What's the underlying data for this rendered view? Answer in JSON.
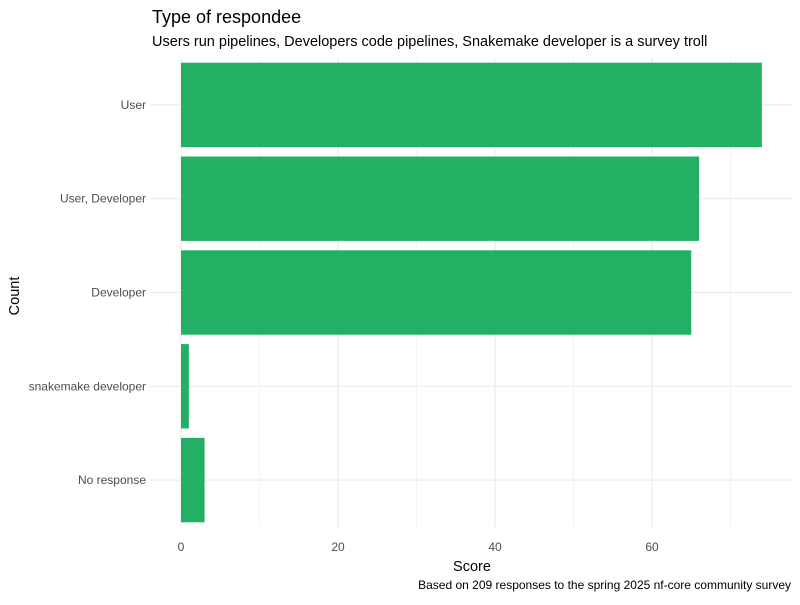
{
  "chart_data": {
    "type": "bar",
    "orientation": "horizontal",
    "title": "Type of respondee",
    "subtitle": "Users run pipelines, Developers code pipelines, Snakemake developer is a survey troll",
    "caption": "Based on 209 responses to the spring 2025 nf-core community survey",
    "xlabel": "Score",
    "ylabel": "Count",
    "categories": [
      "User",
      "User, Developer",
      "Developer",
      "snakemake developer",
      "No response"
    ],
    "values": [
      74,
      66,
      65,
      1,
      3
    ],
    "xlim": [
      0,
      75
    ],
    "xticks": [
      0,
      20,
      40,
      60
    ],
    "xtick_labels": [
      "0",
      "20",
      "40",
      "60"
    ],
    "grid": true,
    "bar_color": "#24B064"
  }
}
